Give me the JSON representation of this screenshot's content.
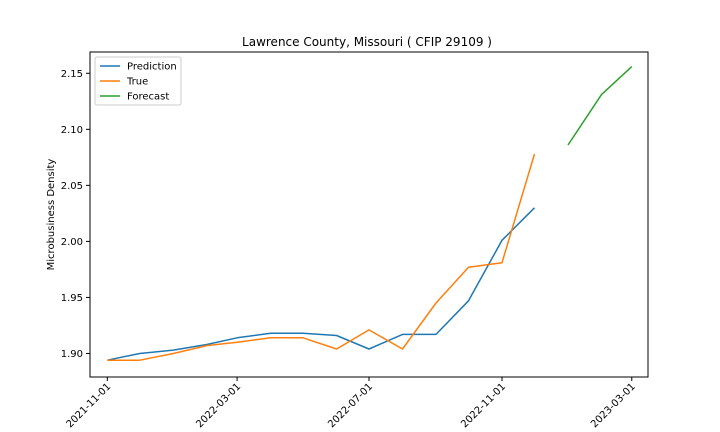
{
  "chart_data": {
    "type": "line",
    "title": "Lawrence County, Missouri ( CFIP 29109 )",
    "xlabel": "",
    "ylabel": "Microbusiness Density",
    "xlim": [
      "2021-10-16",
      "2023-03-16"
    ],
    "ylim": [
      1.879,
      2.169
    ],
    "x_ticks": [
      "2021-11-01",
      "2022-03-01",
      "2022-07-01",
      "2022-11-01",
      "2023-03-01"
    ],
    "y_ticks": [
      1.9,
      1.95,
      2.0,
      2.05,
      2.1,
      2.15
    ],
    "y_tick_labels": [
      "1.90",
      "1.95",
      "2.00",
      "2.05",
      "2.10",
      "2.15"
    ],
    "grid": false,
    "legend": "upper-left",
    "series": [
      {
        "name": "Prediction",
        "color": "#1f77b4",
        "x": [
          "2021-11-01",
          "2021-12-01",
          "2022-01-01",
          "2022-02-01",
          "2022-03-01",
          "2022-04-01",
          "2022-05-01",
          "2022-06-01",
          "2022-07-01",
          "2022-08-01",
          "2022-09-01",
          "2022-10-01",
          "2022-11-01",
          "2022-12-01"
        ],
        "y": [
          1.894,
          1.9,
          1.903,
          1.908,
          1.914,
          1.918,
          1.918,
          1.916,
          1.904,
          1.917,
          1.917,
          1.947,
          2.001,
          2.03
        ]
      },
      {
        "name": "True",
        "color": "#ff7f0e",
        "x": [
          "2021-11-01",
          "2021-12-01",
          "2022-01-01",
          "2022-02-01",
          "2022-03-01",
          "2022-04-01",
          "2022-05-01",
          "2022-06-01",
          "2022-07-01",
          "2022-08-01",
          "2022-09-01",
          "2022-10-01",
          "2022-11-01",
          "2022-12-01"
        ],
        "y": [
          1.894,
          1.894,
          1.9,
          1.907,
          1.91,
          1.914,
          1.914,
          1.904,
          1.921,
          1.904,
          1.945,
          1.977,
          1.981,
          2.078
        ]
      },
      {
        "name": "Forecast",
        "color": "#2ca02c",
        "x": [
          "2023-01-01",
          "2023-02-01",
          "2023-03-01"
        ],
        "y": [
          2.086,
          2.131,
          2.156
        ]
      }
    ]
  }
}
